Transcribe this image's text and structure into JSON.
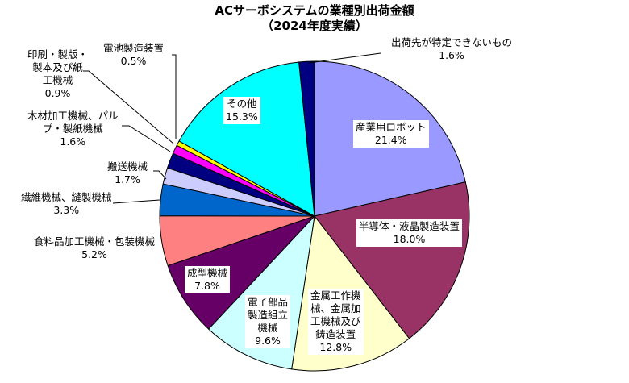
{
  "chart_data": {
    "type": "pie",
    "title": "ACサーボシステムの業種別出荷金額",
    "subtitle": "（2024年度実績）",
    "unit": "%",
    "start_angle_deg": 0,
    "direction": "clockwise",
    "slices": [
      {
        "label": "産業用ロボット",
        "value": 21.4,
        "value_label": "21.4%",
        "color": "#9999FF"
      },
      {
        "label": "半導体・液晶製造装置",
        "value": 18.0,
        "value_label": "18.0%",
        "color": "#993366"
      },
      {
        "label": "金属工作機械、金属加工機械及び鋳造装置",
        "value": 12.8,
        "value_label": "12.8%",
        "color": "#FFFFCC"
      },
      {
        "label": "電子部品製造組立機械",
        "value": 9.6,
        "value_label": "9.6%",
        "color": "#CCFFFF"
      },
      {
        "label": "成型機械",
        "value": 7.8,
        "value_label": "7.8%",
        "color": "#660066"
      },
      {
        "label": "食料品加工機械・包装機械",
        "value": 5.2,
        "value_label": "5.2%",
        "color": "#FF8080"
      },
      {
        "label": "繊維機械、縫製機械",
        "value": 3.3,
        "value_label": "3.3%",
        "color": "#0066CC"
      },
      {
        "label": "搬送機械",
        "value": 1.7,
        "value_label": "1.7%",
        "color": "#CCCCFF"
      },
      {
        "label": "木材加工機械、パルプ・製紙機械",
        "value": 1.6,
        "value_label": "1.6%",
        "color": "#000080"
      },
      {
        "label": "印刷・製版・製本及び紙工機械",
        "value": 0.9,
        "value_label": "0.9%",
        "color": "#FF00FF"
      },
      {
        "label": "電池製造装置",
        "value": 0.5,
        "value_label": "0.5%",
        "color": "#FFFF00"
      },
      {
        "label": "その他",
        "value": 15.3,
        "value_label": "15.3%",
        "color": "#00FFFF"
      },
      {
        "label": "出荷先が特定できないもの",
        "value": 1.6,
        "value_label": "1.6%",
        "color": "#000080"
      }
    ]
  },
  "labels": {
    "robot": {
      "l1": "産業用ロボット",
      "l2": "21.4%"
    },
    "semi": {
      "l1": "半導体・液晶製造装置",
      "l2": "18.0%"
    },
    "metal": {
      "l1": "金属工作機",
      "l2": "械、金属加",
      "l3": "工機械及び",
      "l4": "鋳造装置",
      "l5": "12.8%"
    },
    "elec": {
      "l1": "電子部品",
      "l2": "製造組立",
      "l3": "機械",
      "l4": "9.6%"
    },
    "mold": {
      "l1": "成型機械",
      "l2": "7.8%"
    },
    "food": {
      "l1": "食料品加工機械・包装機械",
      "l2": "5.2%"
    },
    "textile": {
      "l1": "繊維機械、縫製機械",
      "l2": "3.3%"
    },
    "convey": {
      "l1": "搬送機械",
      "l2": "1.7%"
    },
    "wood": {
      "l1": "木材加工機械、パル",
      "l2": "プ・製紙機械",
      "l3": "1.6%"
    },
    "print": {
      "l1": "印刷・製版・",
      "l2": "製本及び紙",
      "l3": "工機械",
      "l4": "0.9%"
    },
    "battery": {
      "l1": "電池製造装置",
      "l2": "0.5%"
    },
    "other": {
      "l1": "その他",
      "l2": "15.3%"
    },
    "unknown": {
      "l1": "出荷先が特定できないもの",
      "l2": "1.6%"
    }
  }
}
